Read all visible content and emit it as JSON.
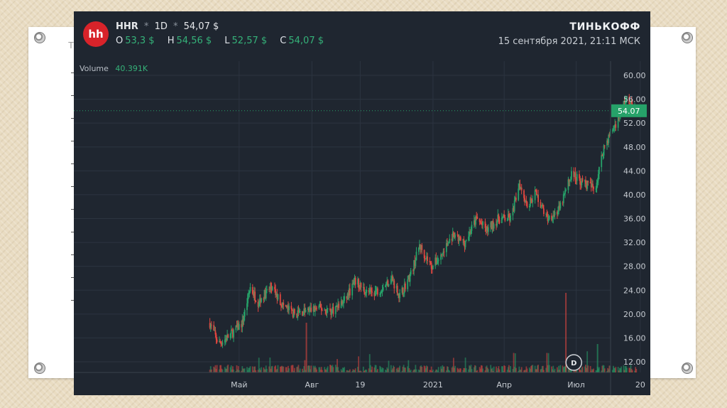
{
  "slide": {
    "behind_letter": "T"
  },
  "header": {
    "logo_text": "hh",
    "ticker": "HHR",
    "separator": "*",
    "interval": "1D",
    "price": "54,07 $",
    "ohlc": [
      {
        "key": "O",
        "value": "53,3 $"
      },
      {
        "key": "H",
        "value": "54,56 $"
      },
      {
        "key": "L",
        "value": "52,57 $"
      },
      {
        "key": "C",
        "value": "54,07 $"
      }
    ],
    "brand": "ТИНЬКОФФ",
    "timestamp": "15 сентября 2021, 21:11 МСК"
  },
  "volume": {
    "label": "Volume",
    "value": "40.391K"
  },
  "last_price_tag": "54.07",
  "dividend_marker": "D",
  "colors": {
    "background": "#1f2630",
    "up": "#26a269",
    "down": "#e0463f",
    "grid": "#2c3440",
    "last_tag": "#26a269",
    "logo": "#d8232a"
  },
  "chart_data": {
    "type": "candlestick",
    "y_ticks": [
      "60.00",
      "56.00",
      "52.00",
      "48.00",
      "44.00",
      "40.00",
      "36.00",
      "32.00",
      "28.00",
      "24.00",
      "20.00",
      "16.00",
      "12.00"
    ],
    "ylim": [
      12,
      60
    ],
    "x_ticks": [
      "Май",
      "Авг",
      "19",
      "2021",
      "Апр",
      "Июл",
      "20"
    ],
    "last_price": 54.07,
    "price_path": [
      {
        "date": "2020-03-25",
        "close": 18.5
      },
      {
        "date": "2020-04-05",
        "close": 15.0
      },
      {
        "date": "2020-04-20",
        "close": 16.5
      },
      {
        "date": "2020-05-05",
        "close": 18.5
      },
      {
        "date": "2020-05-15",
        "close": 24.5
      },
      {
        "date": "2020-05-25",
        "close": 22.0
      },
      {
        "date": "2020-06-10",
        "close": 24.5
      },
      {
        "date": "2020-06-25",
        "close": 21.5
      },
      {
        "date": "2020-07-10",
        "close": 20.0
      },
      {
        "date": "2020-07-25",
        "close": 20.5
      },
      {
        "date": "2020-08-10",
        "close": 21.0
      },
      {
        "date": "2020-08-25",
        "close": 20.5
      },
      {
        "date": "2020-09-10",
        "close": 22.0
      },
      {
        "date": "2020-09-25",
        "close": 25.5
      },
      {
        "date": "2020-10-10",
        "close": 23.5
      },
      {
        "date": "2020-10-25",
        "close": 24.0
      },
      {
        "date": "2020-11-10",
        "close": 26.0
      },
      {
        "date": "2020-11-20",
        "close": 23.0
      },
      {
        "date": "2020-12-05",
        "close": 27.0
      },
      {
        "date": "2020-12-15",
        "close": 31.5
      },
      {
        "date": "2020-12-30",
        "close": 28.0
      },
      {
        "date": "2021-01-10",
        "close": 29.5
      },
      {
        "date": "2021-01-25",
        "close": 33.0
      },
      {
        "date": "2021-02-10",
        "close": 32.0
      },
      {
        "date": "2021-02-25",
        "close": 36.0
      },
      {
        "date": "2021-03-10",
        "close": 34.0
      },
      {
        "date": "2021-03-25",
        "close": 36.0
      },
      {
        "date": "2021-04-10",
        "close": 36.0
      },
      {
        "date": "2021-04-20",
        "close": 42.0
      },
      {
        "date": "2021-05-01",
        "close": 38.0
      },
      {
        "date": "2021-05-10",
        "close": 40.5
      },
      {
        "date": "2021-05-25",
        "close": 36.0
      },
      {
        "date": "2021-06-10",
        "close": 37.5
      },
      {
        "date": "2021-06-25",
        "close": 43.5
      },
      {
        "date": "2021-07-10",
        "close": 42.0
      },
      {
        "date": "2021-07-25",
        "close": 41.0
      },
      {
        "date": "2021-08-05",
        "close": 48.0
      },
      {
        "date": "2021-08-20",
        "close": 52.0
      },
      {
        "date": "2021-09-01",
        "close": 56.0
      },
      {
        "date": "2021-09-15",
        "close": 54.07
      }
    ]
  }
}
